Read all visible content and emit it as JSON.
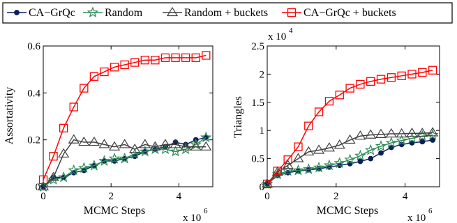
{
  "chart_data": [
    {
      "type": "line",
      "title": "",
      "xlabel": "MCMC Steps",
      "ylabel": "Assortativity",
      "x_multiplier": "x 10",
      "x_multiplier_exp": "6",
      "y_multiplier": "",
      "y_multiplier_exp": "",
      "xlim": [
        0,
        5000000
      ],
      "ylim": [
        0,
        0.6
      ],
      "xticks": [
        0,
        2000000,
        4000000
      ],
      "xtick_labels": [
        "0",
        "2",
        "4"
      ],
      "yticks": [
        0,
        0.2,
        0.4,
        0.6
      ],
      "ytick_labels": [
        "0",
        "0.2",
        "0.4",
        "0.6"
      ],
      "x": [
        0,
        300000,
        600000,
        900000,
        1200000,
        1500000,
        1800000,
        2100000,
        2400000,
        2700000,
        3000000,
        3300000,
        3600000,
        3900000,
        4200000,
        4500000,
        4800000
      ],
      "series": [
        {
          "name": "CA−GrQc",
          "values": [
            0.0,
            0.04,
            0.04,
            0.06,
            0.07,
            0.09,
            0.11,
            0.11,
            0.12,
            0.13,
            0.15,
            0.16,
            0.17,
            0.19,
            0.18,
            0.2,
            0.21
          ]
        },
        {
          "name": "Random",
          "values": [
            0.0,
            0.03,
            0.04,
            0.07,
            0.08,
            0.09,
            0.11,
            0.12,
            0.12,
            0.14,
            0.15,
            0.16,
            0.16,
            0.15,
            0.16,
            0.18,
            0.21
          ]
        },
        {
          "name": "Random + buckets",
          "values": [
            0.0,
            0.04,
            0.14,
            0.2,
            0.19,
            0.19,
            0.18,
            0.17,
            0.18,
            0.16,
            0.18,
            0.17,
            0.18,
            0.18,
            0.17,
            0.17,
            0.17
          ]
        },
        {
          "name": "CA−GrQc + buckets",
          "values": [
            0.03,
            0.13,
            0.25,
            0.34,
            0.42,
            0.47,
            0.49,
            0.51,
            0.52,
            0.53,
            0.54,
            0.54,
            0.55,
            0.55,
            0.55,
            0.55,
            0.56
          ]
        }
      ]
    },
    {
      "type": "line",
      "title": "",
      "xlabel": "MCMC Steps",
      "ylabel": "Triangles",
      "x_multiplier": "x 10",
      "x_multiplier_exp": "6",
      "y_multiplier": "x 10",
      "y_multiplier_exp": "4",
      "xlim": [
        0,
        5000000
      ],
      "ylim": [
        0,
        25000
      ],
      "xticks": [
        0,
        2000000,
        4000000
      ],
      "xtick_labels": [
        "0",
        "2",
        "4"
      ],
      "yticks": [
        0,
        5000,
        10000,
        15000,
        20000,
        25000
      ],
      "ytick_labels": [
        "0",
        "0.5",
        "1",
        "1.5",
        "2",
        "2.5"
      ],
      "x": [
        0,
        300000,
        600000,
        900000,
        1200000,
        1500000,
        1800000,
        2100000,
        2400000,
        2700000,
        3000000,
        3300000,
        3600000,
        3900000,
        4200000,
        4500000,
        4800000
      ],
      "series": [
        {
          "name": "CA−GrQc",
          "values": [
            500,
            2000,
            2500,
            2800,
            3000,
            3200,
            3500,
            3800,
            4100,
            4500,
            5000,
            6000,
            7000,
            7500,
            7800,
            8000,
            8300
          ]
        },
        {
          "name": "Random",
          "values": [
            500,
            2200,
            2800,
            2900,
            3100,
            3400,
            3800,
            4200,
            4800,
            5500,
            6500,
            7200,
            7800,
            8200,
            8600,
            9000,
            9200
          ]
        },
        {
          "name": "Random + buckets",
          "values": [
            500,
            2600,
            3800,
            5000,
            6200,
            6500,
            6900,
            7400,
            8300,
            9000,
            9200,
            9300,
            9400,
            9400,
            9500,
            9500,
            9600
          ]
        },
        {
          "name": "CA−GrQc + buckets",
          "values": [
            500,
            2800,
            4800,
            7100,
            10800,
            13300,
            15200,
            16300,
            17500,
            18200,
            18700,
            19100,
            19400,
            19700,
            20000,
            20300,
            20700
          ]
        }
      ]
    }
  ],
  "legend": {
    "placement": "top",
    "entries": [
      {
        "label": "CA−GrQc",
        "color": "#0b1f5b",
        "marker": "circle"
      },
      {
        "label": "Random",
        "color": "#2e8b57",
        "marker": "star"
      },
      {
        "label": "Random + buckets",
        "color": "#404040",
        "marker": "triangle"
      },
      {
        "label": "CA−GrQc + buckets",
        "color": "#ff0000",
        "marker": "square"
      }
    ]
  },
  "series_styles": [
    {
      "color": "#0b1f5b",
      "marker": "circle"
    },
    {
      "color": "#2e8b57",
      "marker": "star"
    },
    {
      "color": "#404040",
      "marker": "triangle"
    },
    {
      "color": "#ff0000",
      "marker": "square"
    }
  ]
}
